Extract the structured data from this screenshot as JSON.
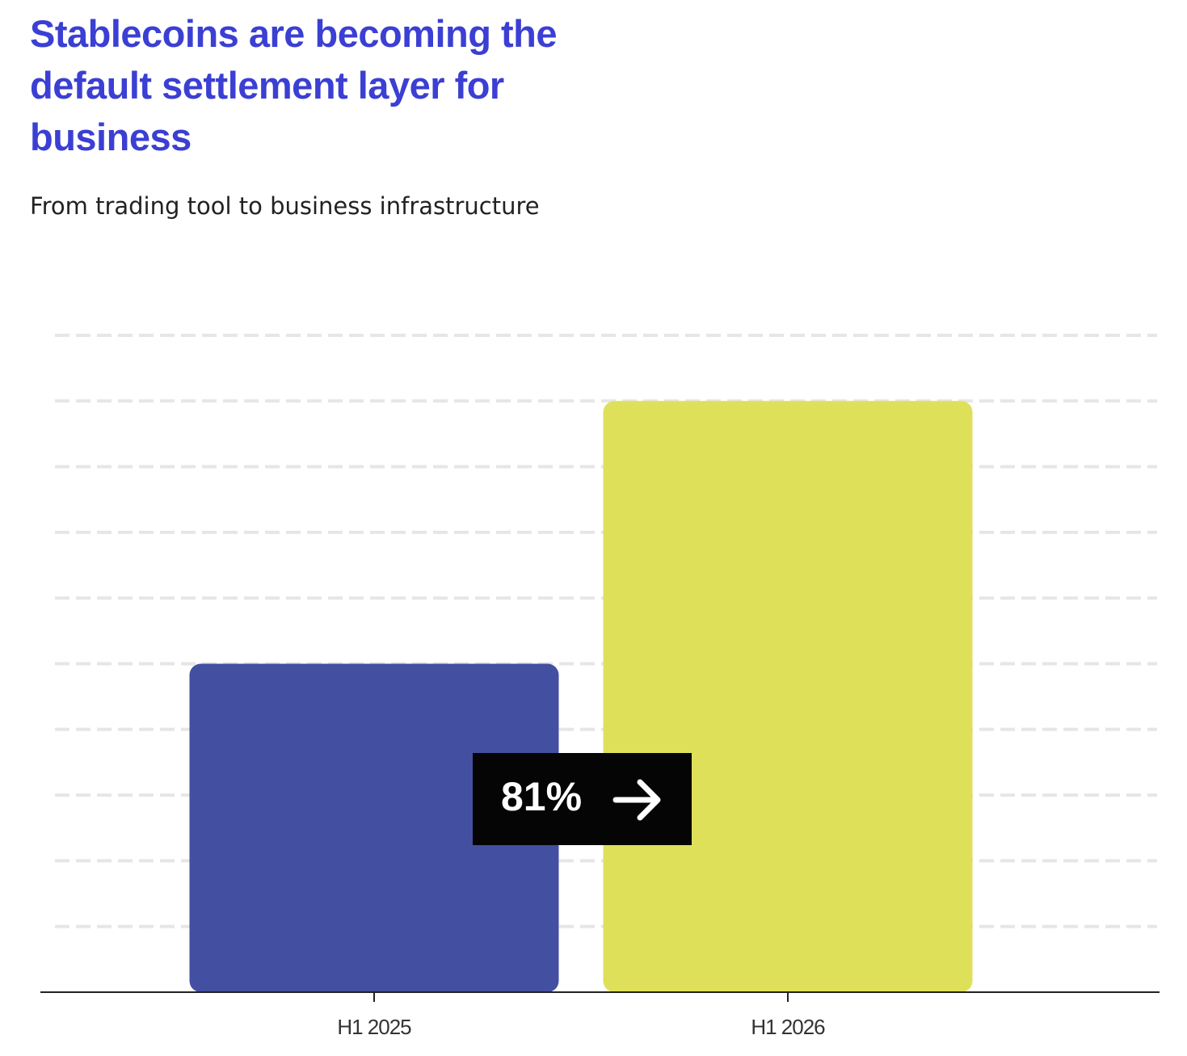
{
  "chart_data": {
    "type": "bar",
    "title": "Stablecoins are becoming the default settlement layer for business",
    "subtitle": "From trading tool to business infrastructure",
    "categories": [
      "H1 2025",
      "H1 2026"
    ],
    "values": [
      5,
      9
    ],
    "colors": [
      "#434fa0",
      "#dfe05a"
    ],
    "ylim": [
      0,
      10
    ],
    "yticks": [
      1,
      2,
      3,
      4,
      5,
      6,
      7,
      8,
      9,
      10
    ],
    "grid": true,
    "annotation": "81%"
  }
}
